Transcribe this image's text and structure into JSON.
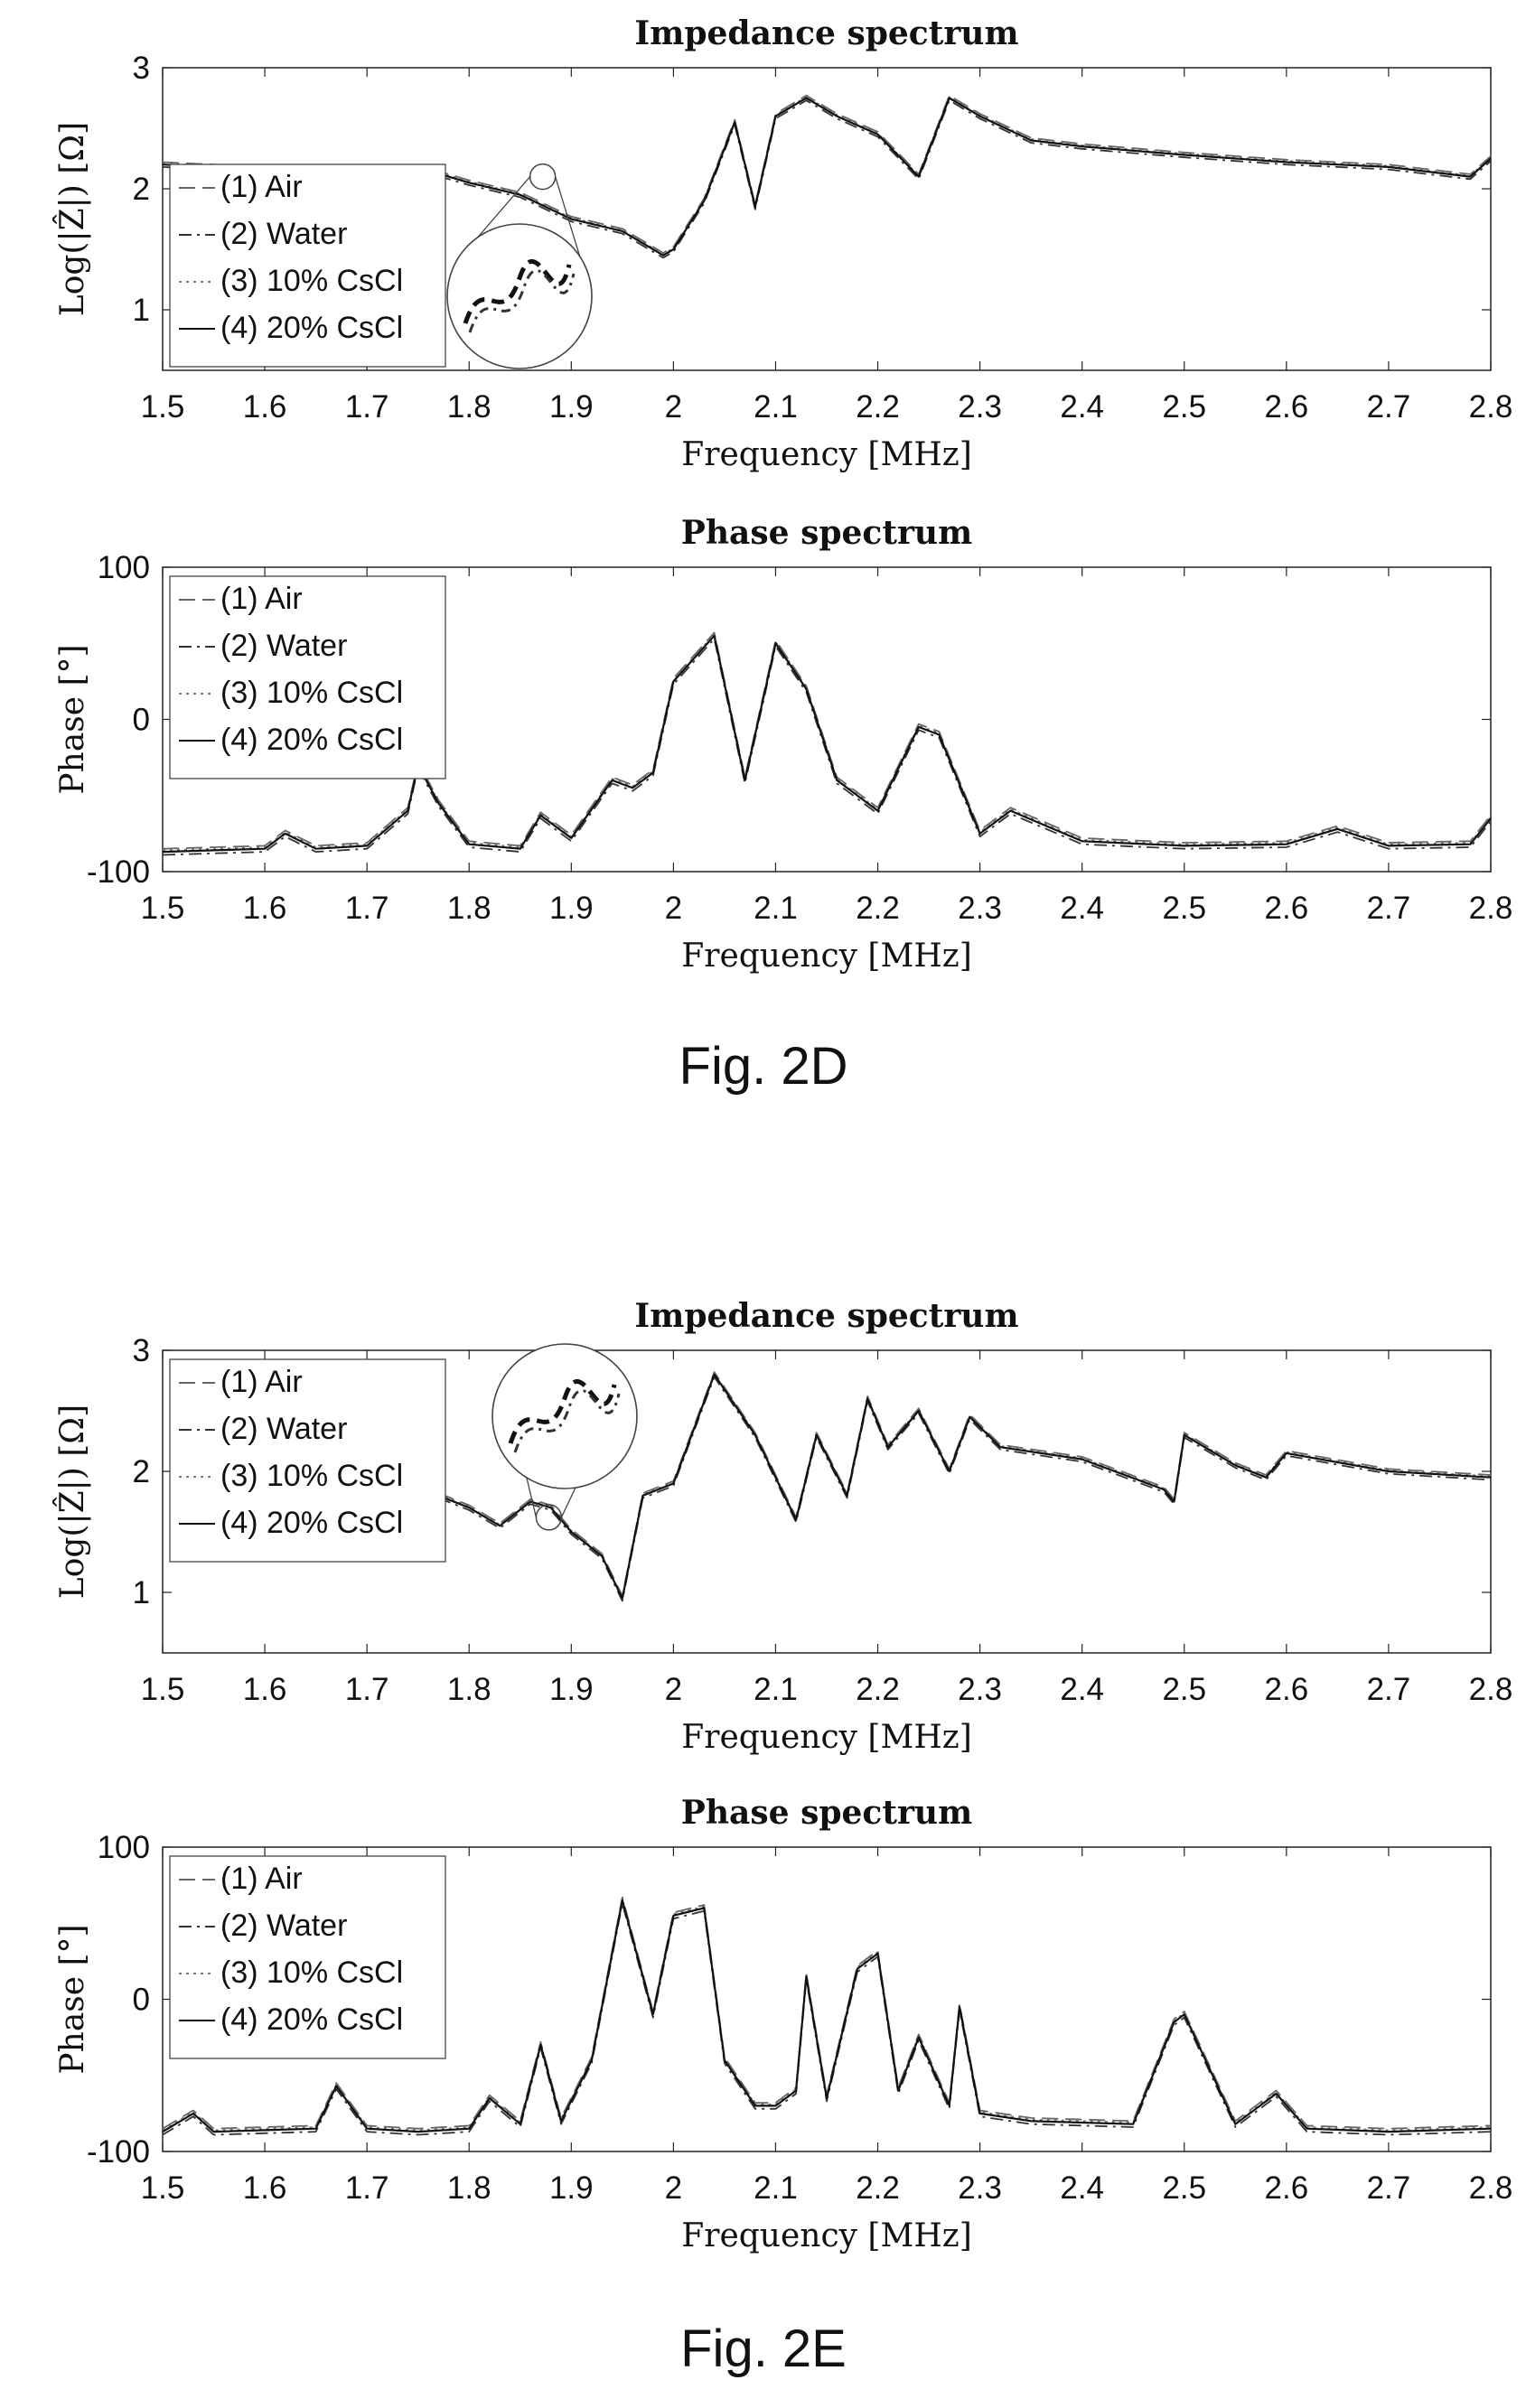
{
  "figures": [
    {
      "caption": "Fig. 2D",
      "charts": [
        {
          "type": "line",
          "title": "Impedance spectrum",
          "xlabel": "Frequency [MHz]",
          "ylabel": "Log(|Ẑ|) [Ω]",
          "xlim": [
            1.5,
            2.8
          ],
          "ylim": [
            0.5,
            3
          ],
          "xticks": [
            "1.5",
            "1.6",
            "1.7",
            "1.8",
            "1.9",
            "2",
            "2.1",
            "2.2",
            "2.3",
            "2.4",
            "2.5",
            "2.6",
            "2.7",
            "2.8"
          ],
          "yticks": [
            "1",
            "2",
            "3"
          ],
          "legend_position": "bottom-left",
          "inset": "magnified zoom circle near 1.87 MHz",
          "legend": [
            "(1) Air",
            "(2) Water",
            "(3) 10% CsCl",
            "(4) 20% CsCl"
          ],
          "base_x": [
            1.5,
            1.55,
            1.6,
            1.65,
            1.7,
            1.75,
            1.76,
            1.8,
            1.85,
            1.9,
            1.95,
            1.99,
            2.0,
            2.03,
            2.06,
            2.08,
            2.1,
            2.13,
            2.16,
            2.2,
            2.24,
            2.27,
            2.3,
            2.35,
            2.4,
            2.5,
            2.6,
            2.7,
            2.78,
            2.8
          ],
          "base_y": [
            2.2,
            2.18,
            2.15,
            2.1,
            2.05,
            2.0,
            2.15,
            2.05,
            1.95,
            1.75,
            1.65,
            1.45,
            1.5,
            1.9,
            2.55,
            1.85,
            2.6,
            2.75,
            2.6,
            2.45,
            2.1,
            2.75,
            2.6,
            2.4,
            2.35,
            2.28,
            2.22,
            2.18,
            2.1,
            2.25
          ],
          "series": [
            {
              "name": "(1) Air",
              "dash": "18,8",
              "offset": 0.02
            },
            {
              "name": "(2) Water",
              "dash": "14,6,3,6",
              "offset": -0.02
            },
            {
              "name": "(3) 10% CsCl",
              "dash": "3,5",
              "offset": 0.01
            },
            {
              "name": "(4) 20% CsCl",
              "dash": "",
              "offset": 0
            }
          ]
        },
        {
          "type": "line",
          "title": "Phase spectrum",
          "xlabel": "Frequency [MHz]",
          "ylabel": "Phase [°]",
          "xlim": [
            1.5,
            2.8
          ],
          "ylim": [
            -100,
            100
          ],
          "xticks": [
            "1.5",
            "1.6",
            "1.7",
            "1.8",
            "1.9",
            "2",
            "2.1",
            "2.2",
            "2.3",
            "2.4",
            "2.5",
            "2.6",
            "2.7",
            "2.8"
          ],
          "yticks": [
            "-100",
            "0",
            "100"
          ],
          "legend_position": "top-left",
          "legend": [
            "(1) Air",
            "(2) Water",
            "(3) 10% CsCl",
            "(4) 20% CsCl"
          ],
          "base_x": [
            1.5,
            1.55,
            1.6,
            1.62,
            1.65,
            1.7,
            1.74,
            1.75,
            1.77,
            1.8,
            1.85,
            1.87,
            1.9,
            1.94,
            1.96,
            1.98,
            2.0,
            2.04,
            2.07,
            2.1,
            2.13,
            2.16,
            2.2,
            2.24,
            2.26,
            2.3,
            2.33,
            2.4,
            2.5,
            2.6,
            2.65,
            2.7,
            2.78,
            2.8
          ],
          "base_y": [
            -87,
            -86,
            -85,
            -75,
            -85,
            -83,
            -60,
            -30,
            -55,
            -82,
            -85,
            -63,
            -78,
            -40,
            -45,
            -35,
            25,
            55,
            -40,
            50,
            20,
            -40,
            -60,
            -5,
            -10,
            -75,
            -60,
            -80,
            -83,
            -82,
            -72,
            -83,
            -82,
            -65
          ],
          "series": [
            {
              "name": "(1) Air",
              "dash": "18,8",
              "offset": 2
            },
            {
              "name": "(2) Water",
              "dash": "14,6,3,6",
              "offset": -2
            },
            {
              "name": "(3) 10% CsCl",
              "dash": "3,5",
              "offset": 1
            },
            {
              "name": "(4) 20% CsCl",
              "dash": "",
              "offset": 0
            }
          ]
        }
      ]
    },
    {
      "caption": "Fig. 2E",
      "charts": [
        {
          "type": "line",
          "title": "Impedance spectrum",
          "xlabel": "Frequency [MHz]",
          "ylabel": "Log(|Ẑ|) [Ω]",
          "xlim": [
            1.5,
            2.8
          ],
          "ylim": [
            0.5,
            3
          ],
          "xticks": [
            "1.5",
            "1.6",
            "1.7",
            "1.8",
            "1.9",
            "2",
            "2.1",
            "2.2",
            "2.3",
            "2.4",
            "2.5",
            "2.6",
            "2.7",
            "2.8"
          ],
          "yticks": [
            "1",
            "2",
            "3"
          ],
          "legend_position": "top-left",
          "inset": "magnified zoom circle near 1.88 MHz",
          "legend": [
            "(1) Air",
            "(2) Water",
            "(3) 10% CsCl",
            "(4) 20% CsCl"
          ],
          "base_x": [
            1.77,
            1.8,
            1.83,
            1.86,
            1.88,
            1.9,
            1.93,
            1.95,
            1.97,
            2.0,
            2.04,
            2.08,
            2.12,
            2.14,
            2.17,
            2.19,
            2.21,
            2.24,
            2.27,
            2.29,
            2.32,
            2.4,
            2.48,
            2.49,
            2.5,
            2.55,
            2.58,
            2.6,
            2.7,
            2.8
          ],
          "base_y": [
            1.8,
            1.7,
            1.55,
            1.75,
            1.7,
            1.5,
            1.3,
            0.95,
            1.8,
            1.9,
            2.8,
            2.3,
            1.6,
            2.3,
            1.8,
            2.6,
            2.2,
            2.5,
            2.0,
            2.45,
            2.2,
            2.1,
            1.85,
            1.75,
            2.3,
            2.05,
            1.95,
            2.15,
            2.0,
            1.95
          ],
          "series": [
            {
              "name": "(1) Air",
              "dash": "18,8",
              "offset": 0.02
            },
            {
              "name": "(2) Water",
              "dash": "14,6,3,6",
              "offset": -0.02
            },
            {
              "name": "(3) 10% CsCl",
              "dash": "3,5",
              "offset": 0.01
            },
            {
              "name": "(4) 20% CsCl",
              "dash": "",
              "offset": 0
            }
          ]
        },
        {
          "type": "line",
          "title": "Phase spectrum",
          "xlabel": "Frequency [MHz]",
          "ylabel": "Phase [°]",
          "xlim": [
            1.5,
            2.8
          ],
          "ylim": [
            -100,
            100
          ],
          "xticks": [
            "1.5",
            "1.6",
            "1.7",
            "1.8",
            "1.9",
            "2",
            "2.1",
            "2.2",
            "2.3",
            "2.4",
            "2.5",
            "2.6",
            "2.7",
            "2.8"
          ],
          "yticks": [
            "-100",
            "0",
            "100"
          ],
          "legend_position": "top-left",
          "legend": [
            "(1) Air",
            "(2) Water",
            "(3) 10% CsCl",
            "(4) 20% CsCl"
          ],
          "base_x": [
            1.5,
            1.53,
            1.55,
            1.6,
            1.65,
            1.67,
            1.7,
            1.75,
            1.8,
            1.82,
            1.85,
            1.87,
            1.89,
            1.92,
            1.95,
            1.98,
            2.0,
            2.03,
            2.05,
            2.08,
            2.1,
            2.12,
            2.13,
            2.15,
            2.18,
            2.2,
            2.22,
            2.24,
            2.27,
            2.28,
            2.3,
            2.35,
            2.45,
            2.49,
            2.5,
            2.55,
            2.59,
            2.62,
            2.7,
            2.8
          ],
          "base_y": [
            -87,
            -75,
            -87,
            -86,
            -85,
            -57,
            -85,
            -87,
            -85,
            -65,
            -82,
            -30,
            -80,
            -40,
            65,
            -10,
            55,
            60,
            -40,
            -70,
            -70,
            -60,
            15,
            -65,
            20,
            30,
            -60,
            -25,
            -70,
            -5,
            -75,
            -80,
            -82,
            -15,
            -10,
            -82,
            -62,
            -85,
            -87,
            -85
          ],
          "series": [
            {
              "name": "(1) Air",
              "dash": "18,8",
              "offset": 2
            },
            {
              "name": "(2) Water",
              "dash": "14,6,3,6",
              "offset": -2
            },
            {
              "name": "(3) 10% CsCl",
              "dash": "3,5",
              "offset": 1
            },
            {
              "name": "(4) 20% CsCl",
              "dash": "",
              "offset": 0
            }
          ]
        }
      ]
    }
  ],
  "chart_data": [
    {
      "type": "line",
      "title": "Impedance spectrum",
      "xlabel": "Frequency [MHz]",
      "ylabel": "Log(|Ẑ|) [Ω]",
      "xlim": [
        1.5,
        2.8
      ],
      "ylim": [
        0.5,
        3
      ],
      "x": [
        1.5,
        1.55,
        1.6,
        1.65,
        1.7,
        1.75,
        1.76,
        1.8,
        1.85,
        1.9,
        1.95,
        1.99,
        2.0,
        2.03,
        2.06,
        2.08,
        2.1,
        2.13,
        2.16,
        2.2,
        2.24,
        2.27,
        2.3,
        2.35,
        2.4,
        2.5,
        2.6,
        2.7,
        2.78,
        2.8
      ],
      "series": [
        {
          "name": "(1) Air",
          "values": [
            2.22,
            2.2,
            2.17,
            2.12,
            2.07,
            2.02,
            2.17,
            2.07,
            1.97,
            1.77,
            1.67,
            1.47,
            1.52,
            1.92,
            2.57,
            1.87,
            2.62,
            2.77,
            2.62,
            2.47,
            2.12,
            2.77,
            2.62,
            2.42,
            2.37,
            2.3,
            2.24,
            2.2,
            2.12,
            2.27
          ]
        },
        {
          "name": "(2) Water",
          "values": [
            2.18,
            2.16,
            2.13,
            2.08,
            2.03,
            1.98,
            2.13,
            2.03,
            1.93,
            1.73,
            1.63,
            1.43,
            1.48,
            1.88,
            2.53,
            1.83,
            2.58,
            2.73,
            2.58,
            2.43,
            2.08,
            2.73,
            2.58,
            2.38,
            2.33,
            2.26,
            2.2,
            2.16,
            2.08,
            2.23
          ]
        },
        {
          "name": "(3) 10% CsCl",
          "values": [
            2.21,
            2.19,
            2.16,
            2.11,
            2.06,
            2.01,
            2.16,
            2.06,
            1.96,
            1.76,
            1.66,
            1.46,
            1.51,
            1.91,
            2.56,
            1.86,
            2.61,
            2.76,
            2.61,
            2.46,
            2.11,
            2.76,
            2.61,
            2.41,
            2.36,
            2.29,
            2.23,
            2.19,
            2.11,
            2.26
          ]
        },
        {
          "name": "(4) 20% CsCl",
          "values": [
            2.2,
            2.18,
            2.15,
            2.1,
            2.05,
            2.0,
            2.15,
            2.05,
            1.95,
            1.75,
            1.65,
            1.45,
            1.5,
            1.9,
            2.55,
            1.85,
            2.6,
            2.75,
            2.6,
            2.45,
            2.1,
            2.75,
            2.6,
            2.4,
            2.35,
            2.28,
            2.22,
            2.18,
            2.1,
            2.25
          ]
        }
      ]
    },
    {
      "type": "line",
      "title": "Phase spectrum",
      "xlabel": "Frequency [MHz]",
      "ylabel": "Phase [°]",
      "xlim": [
        1.5,
        2.8
      ],
      "ylim": [
        -100,
        100
      ],
      "x": [
        1.5,
        1.55,
        1.6,
        1.62,
        1.65,
        1.7,
        1.74,
        1.75,
        1.77,
        1.8,
        1.85,
        1.87,
        1.9,
        1.94,
        1.96,
        1.98,
        2.0,
        2.04,
        2.07,
        2.1,
        2.13,
        2.16,
        2.2,
        2.24,
        2.26,
        2.3,
        2.33,
        2.4,
        2.5,
        2.6,
        2.65,
        2.7,
        2.78,
        2.8
      ],
      "series": [
        {
          "name": "(4) 20% CsCl",
          "values": [
            -87,
            -86,
            -85,
            -75,
            -85,
            -83,
            -60,
            -30,
            -55,
            -82,
            -85,
            -63,
            -78,
            -40,
            -45,
            -35,
            25,
            55,
            -40,
            50,
            20,
            -40,
            -60,
            -5,
            -10,
            -75,
            -60,
            -80,
            -83,
            -82,
            -72,
            -83,
            -82,
            -65
          ]
        }
      ]
    },
    {
      "type": "line",
      "title": "Impedance spectrum",
      "xlabel": "Frequency [MHz]",
      "ylabel": "Log(|Ẑ|) [Ω]",
      "xlim": [
        1.5,
        2.8
      ],
      "ylim": [
        0.5,
        3
      ],
      "x": [
        1.77,
        1.8,
        1.83,
        1.86,
        1.88,
        1.9,
        1.93,
        1.95,
        1.97,
        2.0,
        2.04,
        2.08,
        2.12,
        2.14,
        2.17,
        2.19,
        2.21,
        2.24,
        2.27,
        2.29,
        2.32,
        2.4,
        2.48,
        2.49,
        2.5,
        2.55,
        2.58,
        2.6,
        2.7,
        2.8
      ],
      "series": [
        {
          "name": "(4) 20% CsCl",
          "values": [
            1.8,
            1.7,
            1.55,
            1.75,
            1.7,
            1.5,
            1.3,
            0.95,
            1.8,
            1.9,
            2.8,
            2.3,
            1.6,
            2.3,
            1.8,
            2.6,
            2.2,
            2.5,
            2.0,
            2.45,
            2.2,
            2.1,
            1.85,
            1.75,
            2.3,
            2.05,
            1.95,
            2.15,
            2.0,
            1.95
          ]
        }
      ]
    },
    {
      "type": "line",
      "title": "Phase spectrum",
      "xlabel": "Frequency [MHz]",
      "ylabel": "Phase [°]",
      "xlim": [
        1.5,
        2.8
      ],
      "ylim": [
        -100,
        100
      ],
      "x": [
        1.5,
        1.53,
        1.55,
        1.6,
        1.65,
        1.67,
        1.7,
        1.75,
        1.8,
        1.82,
        1.85,
        1.87,
        1.89,
        1.92,
        1.95,
        1.98,
        2.0,
        2.03,
        2.05,
        2.08,
        2.1,
        2.12,
        2.13,
        2.15,
        2.18,
        2.2,
        2.22,
        2.24,
        2.27,
        2.28,
        2.3,
        2.35,
        2.45,
        2.49,
        2.5,
        2.55,
        2.59,
        2.62,
        2.7,
        2.8
      ],
      "series": [
        {
          "name": "(4) 20% CsCl",
          "values": [
            -87,
            -75,
            -87,
            -86,
            -85,
            -57,
            -85,
            -87,
            -85,
            -65,
            -82,
            -30,
            -80,
            -40,
            65,
            -10,
            55,
            60,
            -40,
            -70,
            -70,
            -60,
            15,
            -65,
            20,
            30,
            -60,
            -25,
            -70,
            -5,
            -75,
            -80,
            -82,
            -15,
            -10,
            -82,
            -62,
            -85,
            -87,
            -85
          ]
        }
      ]
    }
  ]
}
